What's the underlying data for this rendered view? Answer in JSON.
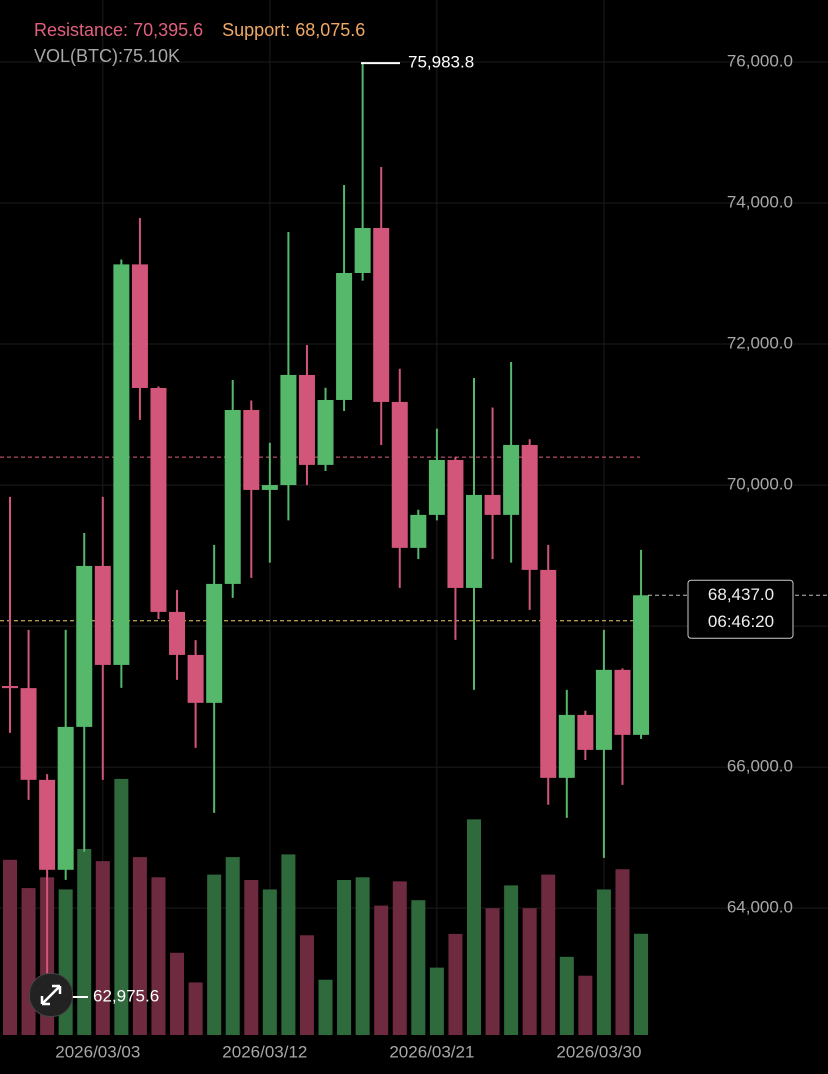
{
  "chart_data": {
    "type": "candlestick",
    "categories": [
      null,
      null,
      null,
      null,
      null,
      "2026/03/03",
      null,
      null,
      null,
      null,
      null,
      null,
      null,
      null,
      "2026/03/12",
      null,
      null,
      null,
      null,
      null,
      null,
      null,
      null,
      "2026/03/21",
      null,
      null,
      null,
      null,
      null,
      null,
      null,
      null,
      "2026/03/30",
      null,
      null
    ],
    "open": [
      67150,
      67120,
      65819,
      64543,
      66570,
      68853,
      67449,
      73130,
      71377,
      68201,
      67591,
      66911,
      68598,
      71065,
      69931,
      70000,
      71562,
      70286,
      71207,
      73008,
      73646,
      71179,
      69109,
      69577,
      70356,
      68541,
      69860,
      69577,
      70569,
      68797,
      65847,
      66740,
      66244,
      67379,
      66457
    ],
    "high": [
      69832,
      67946,
      65900,
      67946,
      69321,
      69832,
      73200,
      73788,
      71400,
      68513,
      67800,
      69151,
      71491,
      71200,
      70600,
      73589,
      71987,
      71380,
      74256,
      75983.8,
      74511,
      71650,
      69650,
      70800,
      70400,
      71519,
      71100,
      71746,
      70650,
      69151,
      67095,
      66800,
      67946,
      67400,
      69080
    ],
    "low": [
      66485,
      65535,
      62975.6,
      64400,
      64800,
      65819,
      67123,
      70924,
      68100,
      67237,
      66272,
      65351,
      68400,
      68683,
      68900,
      69500,
      70000,
      70200,
      71050,
      72900,
      70569,
      68541,
      68950,
      69500,
      67804,
      67095,
      68950,
      68900,
      68229,
      65465,
      65280,
      66100,
      64713,
      65748,
      66400
    ],
    "close": [
      67120,
      65819,
      64543,
      66570,
      68853,
      67449,
      73130,
      71377,
      68201,
      67591,
      66911,
      68598,
      71065,
      69931,
      70000,
      71562,
      70286,
      71207,
      73008,
      73646,
      71179,
      69109,
      69577,
      70356,
      68541,
      69860,
      69577,
      70569,
      68797,
      65847,
      66740,
      66244,
      67379,
      66457,
      68437.0
    ],
    "up_color": "#55b86b",
    "down_color": "#d2557a",
    "volume": {
      "name": "VOL(BTC):",
      "values": [
        130,
        109,
        117,
        108,
        138,
        129,
        190,
        132,
        117,
        61,
        39,
        119,
        132,
        115,
        108,
        134,
        74,
        41,
        115,
        117,
        96,
        114,
        100,
        50,
        75,
        160,
        94,
        111,
        94,
        119,
        58,
        44,
        108,
        123,
        75.1
      ],
      "current_label": "75.10K",
      "up_color": "#2f6a3c",
      "down_color": "#6e2a3e",
      "ylim": [
        0,
        230
      ]
    },
    "ylim": [
      62200,
      76880
    ],
    "yticks": [
      {
        "value": 64000,
        "label": "64,000.0"
      },
      {
        "value": 66000,
        "label": "66,000.0"
      },
      {
        "value": 68000,
        "label": "68,000.0"
      },
      {
        "value": 70000,
        "label": "70,000.0"
      },
      {
        "value": 72000,
        "label": "72,000.0"
      },
      {
        "value": 74000,
        "label": "74,000.0"
      },
      {
        "value": 76000,
        "label": "76,000.0"
      }
    ],
    "grid": true,
    "resistance": {
      "name": "Resistance:",
      "value": 70395.6,
      "label": "70,395.6",
      "color": "#e0607e"
    },
    "support": {
      "name": "Support:",
      "value": 68075.6,
      "label": "68,075.6",
      "color": "#f0d060"
    },
    "high_marker": {
      "value": 75983.8,
      "label": "75,983.8"
    },
    "low_marker": {
      "value": 62975.6,
      "label": "62,975.6"
    },
    "last_price": {
      "value": 68437.0,
      "label": "68,437.0",
      "countdown": "06:46:20"
    }
  }
}
